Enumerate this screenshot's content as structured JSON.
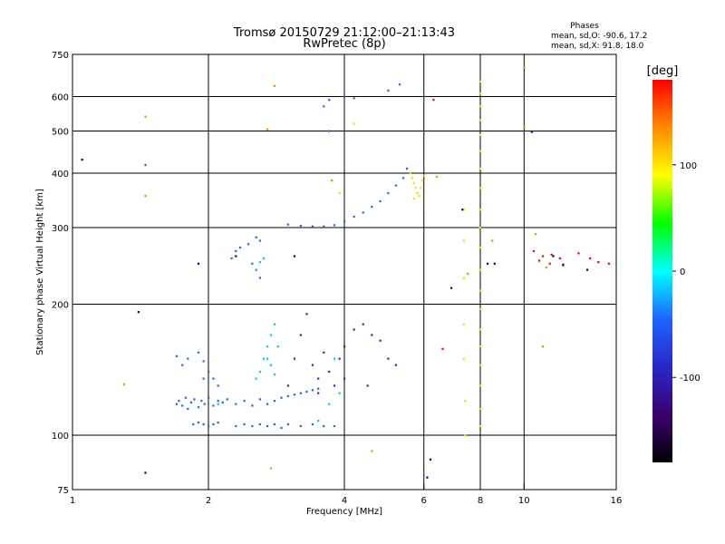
{
  "chart_data": {
    "type": "scatter",
    "title": "Tromsø 20150729 21:12:00–21:13:43",
    "subtitle": "RwPretec (8p)",
    "xlabel": "Frequency [MHz]",
    "ylabel": "Stationary phase Virtual Height [km]",
    "x_scale": "log",
    "y_scale": "log",
    "xlim": [
      1,
      16
    ],
    "ylim": [
      75,
      750
    ],
    "x_ticks": [
      1,
      2,
      4,
      6,
      8,
      10,
      16
    ],
    "x_minor_gridlines": [
      6,
      8,
      10
    ],
    "y_ticks": [
      75,
      100,
      200,
      300,
      400,
      500,
      600,
      750
    ],
    "grid": true,
    "stats": {
      "heading": "Phases",
      "line_o": "mean, sd,O: -90.6, 17.2",
      "line_x": "mean, sd,X:  91.8, 18.0"
    },
    "colorbar": {
      "label": "[deg]",
      "range": [
        -180,
        180
      ],
      "ticks": [
        100,
        0,
        -100
      ],
      "colors": [
        "#ff0000",
        "#ff8c00",
        "#ffff00",
        "#00ff00",
        "#00ffff",
        "#1e64ff",
        "#2828c8",
        "#3c006e",
        "#000000"
      ]
    },
    "series": [
      {
        "values": [
          [
            1.7,
            118
          ],
          [
            1.72,
            120
          ],
          [
            1.75,
            117
          ],
          [
            1.78,
            122
          ],
          [
            1.8,
            115
          ],
          [
            1.83,
            119
          ],
          [
            1.86,
            121
          ],
          [
            1.9,
            116
          ],
          [
            1.93,
            120
          ],
          [
            1.96,
            118
          ],
          [
            2.0,
            122
          ],
          [
            2.05,
            117
          ],
          [
            2.1,
            120
          ],
          [
            2.15,
            119
          ],
          [
            2.2,
            121
          ],
          [
            2.3,
            118
          ],
          [
            2.4,
            120
          ],
          [
            2.5,
            117
          ],
          [
            2.6,
            121
          ],
          [
            2.7,
            118
          ],
          [
            2.8,
            120
          ],
          [
            2.9,
            122
          ],
          [
            3.0,
            123
          ],
          [
            3.1,
            124
          ],
          [
            3.2,
            125
          ],
          [
            3.3,
            126
          ],
          [
            3.4,
            127
          ],
          [
            3.5,
            128
          ],
          [
            1.85,
            106
          ],
          [
            1.9,
            107
          ],
          [
            1.95,
            106
          ],
          [
            2.0,
            105
          ],
          [
            2.05,
            106
          ],
          [
            2.1,
            107
          ],
          [
            2.3,
            105
          ],
          [
            2.4,
            106
          ],
          [
            2.5,
            105
          ],
          [
            2.6,
            106
          ],
          [
            2.7,
            105
          ],
          [
            2.8,
            106
          ],
          [
            2.9,
            104
          ],
          [
            3.0,
            106
          ],
          [
            3.2,
            105
          ],
          [
            3.4,
            106
          ],
          [
            3.6,
            105
          ],
          [
            3.8,
            105
          ],
          [
            1.7,
            152
          ],
          [
            1.75,
            145
          ],
          [
            1.8,
            150
          ],
          [
            1.9,
            155
          ],
          [
            1.95,
            148
          ],
          [
            2.0,
            140
          ],
          [
            2.05,
            135
          ],
          [
            2.1,
            130
          ],
          [
            1.95,
            135
          ],
          [
            2.25,
            255
          ],
          [
            2.3,
            265
          ],
          [
            2.35,
            270
          ],
          [
            2.45,
            275
          ],
          [
            2.55,
            285
          ],
          [
            2.6,
            280
          ],
          [
            2.5,
            248
          ],
          [
            2.55,
            240
          ],
          [
            2.6,
            230
          ],
          [
            3.0,
            305
          ],
          [
            3.2,
            303
          ],
          [
            3.4,
            302
          ],
          [
            3.6,
            302
          ],
          [
            3.8,
            304
          ],
          [
            4.0,
            310
          ],
          [
            4.2,
            318
          ],
          [
            4.4,
            325
          ],
          [
            4.6,
            335
          ],
          [
            4.8,
            345
          ],
          [
            5.0,
            360
          ],
          [
            5.2,
            375
          ],
          [
            5.4,
            390
          ],
          [
            5.5,
            410
          ],
          [
            3.6,
            570
          ],
          [
            3.7,
            590
          ],
          [
            4.0,
            600
          ],
          [
            4.2,
            595
          ],
          [
            5.0,
            620
          ],
          [
            5.3,
            640
          ],
          [
            3.7,
            500
          ],
          [
            1.45,
            418
          ]
        ]
      },
      {
        "values": [
          [
            2.55,
            135
          ],
          [
            2.6,
            140
          ],
          [
            2.65,
            150
          ],
          [
            2.7,
            160
          ],
          [
            2.75,
            170
          ],
          [
            2.8,
            180
          ],
          [
            2.7,
            150
          ],
          [
            2.75,
            145
          ],
          [
            2.8,
            138
          ],
          [
            2.85,
            160
          ],
          [
            2.6,
            250
          ],
          [
            2.65,
            255
          ],
          [
            2.55,
            240
          ],
          [
            3.8,
            150
          ],
          [
            3.9,
            125
          ],
          [
            3.7,
            118
          ],
          [
            2.1,
            118
          ],
          [
            3.5,
            108
          ]
        ]
      },
      {
        "values": [
          [
            3.0,
            130
          ],
          [
            3.1,
            150
          ],
          [
            3.2,
            170
          ],
          [
            3.3,
            190
          ],
          [
            3.4,
            145
          ],
          [
            3.5,
            135
          ],
          [
            3.6,
            155
          ],
          [
            3.7,
            140
          ],
          [
            3.8,
            130
          ],
          [
            3.9,
            150
          ],
          [
            4.0,
            160
          ],
          [
            4.2,
            175
          ],
          [
            4.4,
            180
          ],
          [
            4.6,
            170
          ],
          [
            4.8,
            165
          ],
          [
            5.0,
            150
          ],
          [
            5.2,
            145
          ],
          [
            4.5,
            130
          ],
          [
            4.0,
            135
          ],
          [
            3.5,
            125
          ]
        ]
      },
      {
        "values": [
          [
            5.6,
            400
          ],
          [
            5.65,
            390
          ],
          [
            5.7,
            380
          ],
          [
            5.75,
            370
          ],
          [
            5.8,
            360
          ],
          [
            5.85,
            355
          ],
          [
            5.9,
            370
          ],
          [
            5.95,
            385
          ],
          [
            6.0,
            395
          ],
          [
            5.7,
            350
          ],
          [
            7.98,
            650
          ],
          [
            7.98,
            610
          ],
          [
            7.98,
            570
          ],
          [
            7.98,
            530
          ],
          [
            7.98,
            490
          ],
          [
            7.98,
            450
          ],
          [
            7.98,
            410
          ],
          [
            7.98,
            370
          ],
          [
            7.98,
            330
          ],
          [
            7.98,
            300
          ],
          [
            7.98,
            270
          ],
          [
            7.98,
            240
          ],
          [
            7.98,
            215
          ],
          [
            7.98,
            195
          ],
          [
            7.98,
            175
          ],
          [
            7.98,
            160
          ],
          [
            7.98,
            145
          ],
          [
            7.98,
            130
          ],
          [
            7.98,
            115
          ],
          [
            7.98,
            105
          ],
          [
            7.35,
            330
          ],
          [
            7.35,
            280
          ],
          [
            7.35,
            230
          ],
          [
            7.35,
            180
          ],
          [
            7.35,
            150
          ],
          [
            7.4,
            120
          ],
          [
            7.4,
            100
          ],
          [
            4.2,
            520
          ],
          [
            3.9,
            360
          ]
        ]
      },
      {
        "values": [
          [
            1.45,
            540
          ],
          [
            1.45,
            355
          ],
          [
            1.3,
            131
          ],
          [
            2.7,
            505
          ],
          [
            2.8,
            635
          ],
          [
            10.0,
            700
          ],
          [
            10.0,
            510
          ],
          [
            10.6,
            290
          ],
          [
            11.2,
            243
          ],
          [
            3.75,
            385
          ],
          [
            4.6,
            92
          ],
          [
            6.4,
            393
          ],
          [
            7.5,
            235
          ],
          [
            8.5,
            280
          ],
          [
            11.0,
            160
          ],
          [
            2.75,
            84
          ]
        ]
      },
      {
        "values": [
          [
            10.5,
            265
          ],
          [
            11.0,
            258
          ],
          [
            11.5,
            260
          ],
          [
            12.0,
            255
          ],
          [
            10.8,
            252
          ],
          [
            11.4,
            248
          ],
          [
            12.2,
            247
          ],
          [
            13.2,
            262
          ],
          [
            14.0,
            255
          ],
          [
            14.6,
            250
          ],
          [
            15.4,
            248
          ],
          [
            6.3,
            590
          ],
          [
            6.6,
            158
          ]
        ]
      },
      {
        "values": [
          [
            1.05,
            430
          ],
          [
            1.45,
            82
          ],
          [
            1.4,
            192
          ],
          [
            1.9,
            248
          ],
          [
            3.1,
            258
          ],
          [
            2.3,
            258
          ],
          [
            6.2,
            88
          ],
          [
            6.1,
            80
          ],
          [
            6.9,
            218
          ],
          [
            10.4,
            498
          ],
          [
            7.3,
            330
          ],
          [
            8.6,
            248
          ],
          [
            13.8,
            240
          ],
          [
            8.3,
            248
          ],
          [
            11.6,
            258
          ],
          [
            12.2,
            246
          ]
        ]
      }
    ],
    "series_colors": [
      "#1e64ff",
      "#00c8ff",
      "#2828c8",
      "#ffdc00",
      "#ff8c00",
      "#ff0000",
      "#0000a0"
    ]
  }
}
